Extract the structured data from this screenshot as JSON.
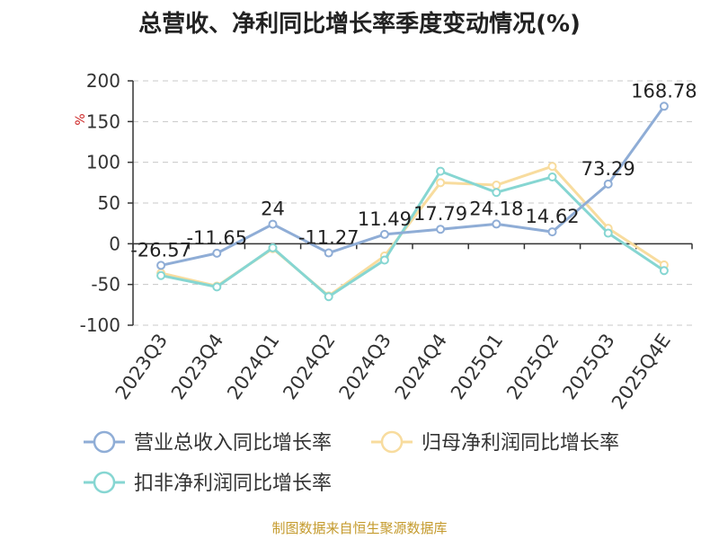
{
  "title": "总营收、净利同比增长率季度变动情况(%)",
  "source": "制图数据来自恒生聚源数据库",
  "chart_data": {
    "type": "line",
    "title": "总营收、净利同比增长率季度变动情况(%)",
    "ylabel": "%",
    "xlabel": "",
    "ylim": [
      -100,
      200
    ],
    "yticks": [
      -100,
      -50,
      0,
      50,
      100,
      150,
      200
    ],
    "grid": true,
    "legend": "bottom",
    "categories": [
      "2023Q3",
      "2023Q4",
      "2024Q1",
      "2024Q2",
      "2024Q3",
      "2024Q4",
      "2025Q1",
      "2025Q2",
      "2025Q3",
      "2025Q4E"
    ],
    "series": [
      {
        "name": "营业总收入同比增长率",
        "color": "#8fadd6",
        "values": [
          -26.57,
          -11.65,
          24,
          -11.27,
          11.49,
          17.79,
          24.18,
          14.62,
          73.29,
          168.78
        ],
        "labels": [
          "-26.57",
          "-11.65",
          "24",
          "-11.27",
          "11.49",
          "17.79",
          "24.18",
          "14.62",
          "73.29",
          "168.78"
        ]
      },
      {
        "name": "归母净利润同比增长率",
        "color": "#f8dc9e",
        "values": [
          -36,
          -52,
          -6,
          -64,
          -15,
          75,
          72,
          95,
          19,
          -26
        ]
      },
      {
        "name": "扣非净利润同比增长率",
        "color": "#86d6d2",
        "values": [
          -39,
          -53,
          -5,
          -65,
          -20,
          89,
          63,
          82,
          13,
          -33
        ]
      }
    ]
  }
}
